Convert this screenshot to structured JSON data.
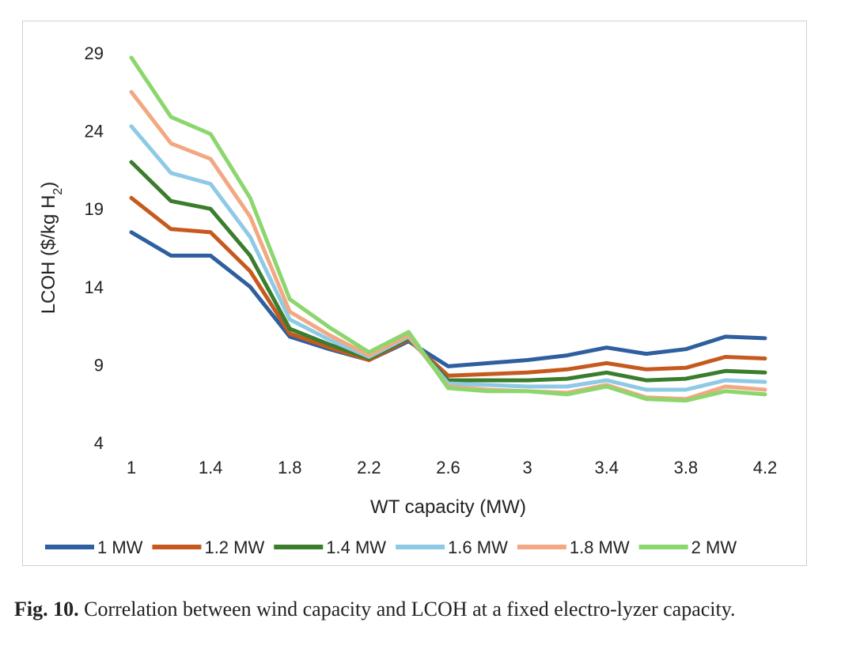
{
  "chart_data": {
    "type": "line",
    "x": [
      1,
      1.2,
      1.4,
      1.6,
      1.8,
      2,
      2.2,
      2.4,
      2.6,
      2.8,
      3,
      3.2,
      3.4,
      3.6,
      3.8,
      4,
      4.2
    ],
    "x_tick_labels": [
      "1",
      "1.4",
      "1.8",
      "2.2",
      "2.6",
      "3",
      "3.4",
      "3.8",
      "4.2"
    ],
    "y_tick_labels": [
      "4",
      "9",
      "14",
      "19",
      "24",
      "29"
    ],
    "xlabel": "WT capacity (MW)",
    "ylabel_main": "LCOH ($/kg H",
    "ylabel_sub": "2",
    "ylabel_end": ")",
    "xlim": [
      1,
      4.2
    ],
    "ylim": [
      4,
      29
    ],
    "grid": false,
    "legend_position": "bottom",
    "series": [
      {
        "name": "1 MW",
        "color": "#2e5f9e",
        "values": [
          17.5,
          16.0,
          16.0,
          14.0,
          10.8,
          10.0,
          9.3,
          10.5,
          8.9,
          9.1,
          9.3,
          9.6,
          10.1,
          9.7,
          10.0,
          10.8,
          10.7
        ]
      },
      {
        "name": "1.2 MW",
        "color": "#c65a1e",
        "values": [
          19.7,
          17.7,
          17.5,
          15.0,
          11.0,
          10.1,
          9.3,
          10.6,
          8.3,
          8.4,
          8.5,
          8.7,
          9.1,
          8.7,
          8.8,
          9.5,
          9.4
        ]
      },
      {
        "name": "1.4 MW",
        "color": "#3a7d2c",
        "values": [
          22.0,
          19.5,
          19.0,
          16.0,
          11.3,
          10.3,
          9.4,
          10.7,
          8.0,
          8.0,
          8.0,
          8.1,
          8.5,
          8.0,
          8.1,
          8.6,
          8.5
        ]
      },
      {
        "name": "1.6 MW",
        "color": "#8ecae6",
        "values": [
          24.3,
          21.3,
          20.6,
          17.2,
          11.9,
          10.6,
          9.5,
          10.8,
          7.8,
          7.7,
          7.6,
          7.6,
          8.0,
          7.4,
          7.4,
          8.0,
          7.9
        ]
      },
      {
        "name": "1.8 MW",
        "color": "#f2a882",
        "values": [
          26.5,
          23.2,
          22.2,
          18.5,
          12.4,
          10.9,
          9.6,
          10.9,
          7.6,
          7.4,
          7.3,
          7.2,
          7.7,
          6.9,
          6.8,
          7.6,
          7.4
        ]
      },
      {
        "name": "2 MW",
        "color": "#8cd66e",
        "values": [
          28.7,
          24.9,
          23.8,
          19.7,
          13.2,
          11.4,
          9.8,
          11.1,
          7.5,
          7.3,
          7.3,
          7.1,
          7.6,
          6.8,
          6.7,
          7.3,
          7.1
        ]
      }
    ]
  },
  "caption": {
    "label": "Fig. 10.",
    "text": "Correlation between wind capacity and LCOH at a fixed electro-lyzer capacity."
  }
}
